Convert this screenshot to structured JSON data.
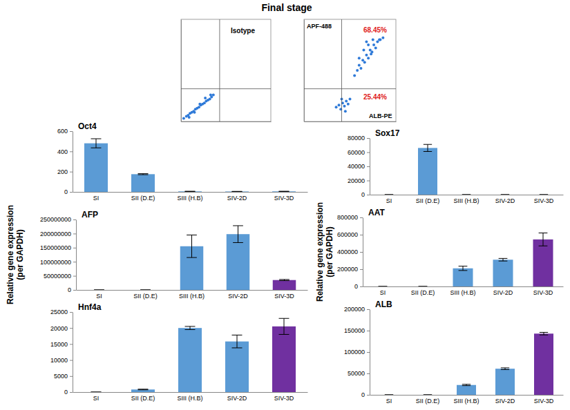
{
  "title": "Final stage",
  "chart_data": [
    {
      "type": "scatter",
      "annotations": [
        "Isotype"
      ],
      "color": "#2f7ad8",
      "xlim": [
        0,
        100
      ],
      "ylim": [
        0,
        100
      ],
      "tick_labels": false,
      "gate": {
        "x": 43,
        "y": 32
      },
      "x": [
        3,
        6,
        8,
        10,
        12,
        14,
        16,
        18,
        20,
        22,
        24,
        26,
        28,
        30,
        32,
        34,
        36,
        9,
        15,
        21,
        27,
        33
      ],
      "values": [
        3,
        5,
        6,
        8,
        9,
        10,
        12,
        13,
        14,
        16,
        17,
        18,
        20,
        21,
        22,
        24,
        26,
        4,
        9,
        17,
        23,
        26
      ]
    },
    {
      "type": "scatter",
      "ylabel": "APF-488",
      "xlabel": "ALB-PE",
      "annotations": [
        "68.45%",
        "25.44%"
      ],
      "color": "#2f7ad8",
      "xlim": [
        0,
        100
      ],
      "ylim": [
        0,
        100
      ],
      "tick_labels": false,
      "gate": {
        "x": 41,
        "y": 32
      },
      "x": [
        35,
        38,
        40,
        42,
        44,
        46,
        48,
        50,
        41,
        45,
        55,
        58,
        60,
        62,
        64,
        66,
        68,
        70,
        72,
        74,
        76,
        78,
        80,
        82,
        83,
        86,
        65,
        70,
        75,
        60,
        68,
        73
      ],
      "values": [
        14,
        16,
        12,
        18,
        15,
        20,
        17,
        22,
        22,
        10,
        45,
        50,
        55,
        52,
        60,
        58,
        65,
        62,
        70,
        68,
        75,
        72,
        78,
        80,
        80,
        82,
        70,
        75,
        80,
        62,
        78,
        66
      ]
    },
    {
      "type": "bar",
      "title": "Oct4",
      "categories": [
        "SI",
        "SII (D.E)",
        "SIII (H.B)",
        "SIV-2D",
        "SIV-3D"
      ],
      "values": [
        480,
        175,
        5,
        4,
        5
      ],
      "errors": [
        45,
        5,
        1,
        1,
        1
      ],
      "colors": [
        "#5b9bd5",
        "#5b9bd5",
        "#5b9bd5",
        "#5b9bd5",
        "#5b9bd5"
      ],
      "ylim": [
        0,
        600
      ],
      "yticks": [
        0,
        200,
        400,
        600
      ]
    },
    {
      "type": "bar",
      "title": "Sox17",
      "categories": [
        "SI",
        "SII (D.E)",
        "SIII (H.B)",
        "SIV-2D",
        "SIV-3D"
      ],
      "values": [
        0,
        66000,
        0,
        0,
        0
      ],
      "errors": [
        0,
        5000,
        0,
        0,
        0
      ],
      "colors": [
        "#5b9bd5",
        "#5b9bd5",
        "#5b9bd5",
        "#5b9bd5",
        "#5b9bd5"
      ],
      "ylim": [
        0,
        80000
      ],
      "yticks": [
        0,
        20000,
        40000,
        60000,
        80000
      ]
    },
    {
      "type": "bar",
      "title": "AFP",
      "ylabel": [
        "Relative gene expression",
        "(per GAPDH)"
      ],
      "categories": [
        "SI",
        "SII (D.E)",
        "SIII (H.B)",
        "SIV-2D",
        "SIV-3D"
      ],
      "values": [
        0,
        0,
        155000000,
        198000000,
        35000000
      ],
      "errors": [
        0,
        0,
        40000000,
        30000000,
        2000000
      ],
      "colors": [
        "#5b9bd5",
        "#5b9bd5",
        "#5b9bd5",
        "#5b9bd5",
        "#7030a0"
      ],
      "ylim": [
        0,
        250000000
      ],
      "yticks": [
        0,
        50000000,
        100000000,
        150000000,
        200000000,
        250000000
      ]
    },
    {
      "type": "bar",
      "title": "AAT",
      "ylabel": [
        "Relative gene expression",
        "(per GAPDH)"
      ],
      "categories": [
        "SI",
        "SII (D.E)",
        "SIII (H.B)",
        "SIV-2D",
        "SIV-3D"
      ],
      "values": [
        0,
        0,
        210000,
        310000,
        545000
      ],
      "errors": [
        0,
        0,
        25000,
        15000,
        75000
      ],
      "colors": [
        "#5b9bd5",
        "#5b9bd5",
        "#5b9bd5",
        "#5b9bd5",
        "#7030a0"
      ],
      "ylim": [
        0,
        800000
      ],
      "yticks": [
        0,
        200000,
        400000,
        600000,
        800000
      ]
    },
    {
      "type": "bar",
      "title": "Hnf4a",
      "categories": [
        "SI",
        "SII (D.E)",
        "SIII (H.B)",
        "SIV-2D",
        "SIV-3D"
      ],
      "values": [
        0,
        800,
        20000,
        15800,
        20500
      ],
      "errors": [
        0,
        100,
        500,
        2000,
        2500
      ],
      "colors": [
        "#5b9bd5",
        "#5b9bd5",
        "#5b9bd5",
        "#5b9bd5",
        "#7030a0"
      ],
      "ylim": [
        0,
        25000
      ],
      "yticks": [
        0,
        5000,
        10000,
        15000,
        20000,
        25000
      ]
    },
    {
      "type": "bar",
      "title": "ALB",
      "categories": [
        "SI",
        "SII (D.E)",
        "SIII (H.B)",
        "SIV-2D",
        "SIV-3D"
      ],
      "values": [
        0,
        0,
        23000,
        61000,
        143000
      ],
      "errors": [
        0,
        0,
        1500,
        2000,
        3000
      ],
      "colors": [
        "#5b9bd5",
        "#5b9bd5",
        "#5b9bd5",
        "#5b9bd5",
        "#7030a0"
      ],
      "ylim": [
        0,
        200000
      ],
      "yticks": [
        0,
        50000,
        100000,
        150000,
        200000
      ]
    }
  ]
}
